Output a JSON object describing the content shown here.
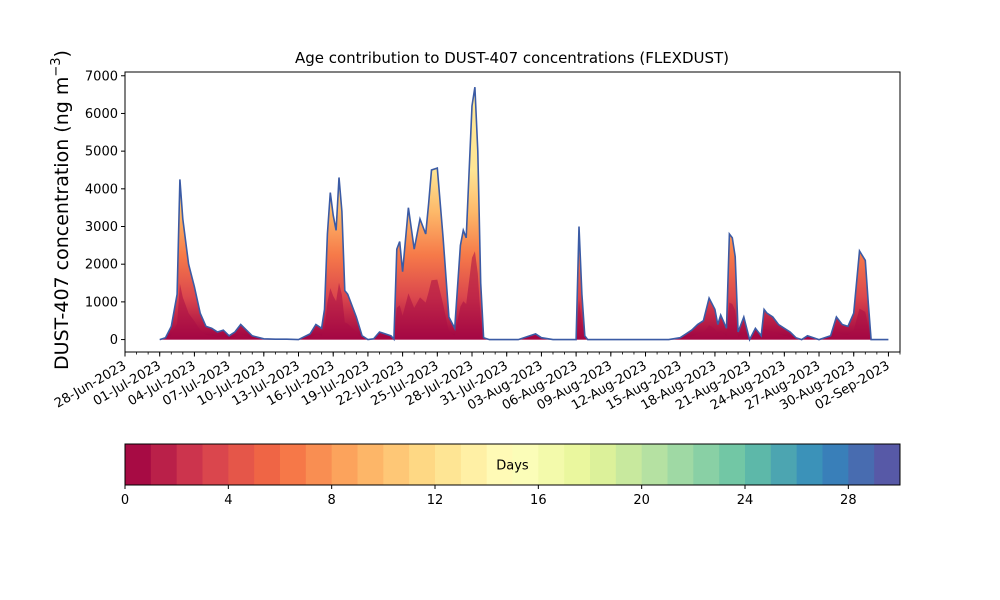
{
  "chart_data": {
    "type": "area",
    "title": "Age contribution to DUST-407 concentrations (FLEXDUST)",
    "ylabel": "DUST-407 concentration (ng m",
    "ylabel_exponent": "−3",
    "ylabel_close": ")",
    "ylim": [
      -330,
      7100
    ],
    "yticks": [
      0,
      1000,
      2000,
      3000,
      4000,
      5000,
      6000,
      7000
    ],
    "xlim": [
      "2023-06-28",
      "2023-09-03"
    ],
    "xticks": [
      "28-Jun-2023",
      "01-Jul-2023",
      "04-Jul-2023",
      "07-Jul-2023",
      "10-Jul-2023",
      "13-Jul-2023",
      "16-Jul-2023",
      "19-Jul-2023",
      "22-Jul-2023",
      "25-Jul-2023",
      "28-Jul-2023",
      "31-Jul-2023",
      "03-Aug-2023",
      "06-Aug-2023",
      "09-Aug-2023",
      "12-Aug-2023",
      "15-Aug-2023",
      "18-Aug-2023",
      "21-Aug-2023",
      "24-Aug-2023",
      "27-Aug-2023",
      "30-Aug-2023",
      "02-Sep-2023"
    ],
    "grid": false,
    "series_note_colorscale": "Spectral",
    "total": {
      "x": [
        "2023-07-01",
        "2023-07-01T12:00",
        "2023-07-02",
        "2023-07-02T12:00",
        "2023-07-02T18:00",
        "2023-07-03",
        "2023-07-03T06:00",
        "2023-07-03T12:00",
        "2023-07-04",
        "2023-07-04T12:00",
        "2023-07-05",
        "2023-07-05T12:00",
        "2023-07-06",
        "2023-07-06T12:00",
        "2023-07-07",
        "2023-07-07T12:00",
        "2023-07-08",
        "2023-07-09",
        "2023-07-10",
        "2023-07-11",
        "2023-07-12",
        "2023-07-13",
        "2023-07-14",
        "2023-07-14T12:00",
        "2023-07-15",
        "2023-07-15T06:00",
        "2023-07-15T12:00",
        "2023-07-15T18:00",
        "2023-07-16",
        "2023-07-16T06:00",
        "2023-07-16T12:00",
        "2023-07-16T18:00",
        "2023-07-17",
        "2023-07-17T06:00",
        "2023-07-17T12:00",
        "2023-07-18",
        "2023-07-18T12:00",
        "2023-07-19",
        "2023-07-19T12:00",
        "2023-07-20",
        "2023-07-21",
        "2023-07-21T06:00",
        "2023-07-21T12:00",
        "2023-07-21T18:00",
        "2023-07-22",
        "2023-07-22T12:00",
        "2023-07-23",
        "2023-07-23T12:00",
        "2023-07-24",
        "2023-07-24T06:00",
        "2023-07-24T12:00",
        "2023-07-25",
        "2023-07-25T12:00",
        "2023-07-26",
        "2023-07-26T12:00",
        "2023-07-27",
        "2023-07-27T06:00",
        "2023-07-27T12:00",
        "2023-07-28",
        "2023-07-28T06:00",
        "2023-07-28T12:00",
        "2023-07-28T18:00",
        "2023-07-29",
        "2023-07-29T12:00",
        "2023-07-30",
        "2023-07-31",
        "2023-08-01",
        "2023-08-02",
        "2023-08-02T12:00",
        "2023-08-03",
        "2023-08-04",
        "2023-08-05",
        "2023-08-06",
        "2023-08-06T06:00",
        "2023-08-06T12:00",
        "2023-08-06T18:00",
        "2023-08-07",
        "2023-08-08",
        "2023-08-10",
        "2023-08-12",
        "2023-08-14",
        "2023-08-15",
        "2023-08-15T12:00",
        "2023-08-16",
        "2023-08-16T12:00",
        "2023-08-17",
        "2023-08-17T12:00",
        "2023-08-18",
        "2023-08-18T06:00",
        "2023-08-18T12:00",
        "2023-08-19",
        "2023-08-19T06:00",
        "2023-08-19T12:00",
        "2023-08-19T18:00",
        "2023-08-20",
        "2023-08-20T12:00",
        "2023-08-21",
        "2023-08-21T12:00",
        "2023-08-22",
        "2023-08-22T06:00",
        "2023-08-22T12:00",
        "2023-08-23",
        "2023-08-23T12:00",
        "2023-08-24",
        "2023-08-24T12:00",
        "2023-08-25",
        "2023-08-25T12:00",
        "2023-08-26",
        "2023-08-27",
        "2023-08-28",
        "2023-08-28T12:00",
        "2023-08-29",
        "2023-08-29T12:00",
        "2023-08-30",
        "2023-08-30T12:00",
        "2023-08-31",
        "2023-08-31T06:00",
        "2023-08-31T12:00",
        "2023-08-31T18:00",
        "2023-09-01",
        "2023-09-02"
      ],
      "y": [
        0,
        50,
        350,
        1200,
        4250,
        3200,
        2600,
        2000,
        1400,
        700,
        350,
        300,
        200,
        250,
        100,
        200,
        400,
        100,
        20,
        10,
        10,
        0,
        150,
        400,
        300,
        800,
        2800,
        3900,
        3300,
        2900,
        4300,
        3400,
        1300,
        1200,
        1000,
        600,
        100,
        0,
        20,
        200,
        100,
        10,
        2400,
        2600,
        1800,
        3500,
        2400,
        3200,
        2800,
        3600,
        4500,
        4550,
        2700,
        600,
        300,
        2500,
        2900,
        2700,
        6200,
        6700,
        5000,
        1500,
        50,
        0,
        0,
        0,
        0,
        100,
        150,
        50,
        0,
        0,
        0,
        3000,
        1200,
        100,
        0,
        0,
        0,
        0,
        0,
        50,
        150,
        250,
        400,
        500,
        1100,
        800,
        400,
        650,
        300,
        2800,
        2700,
        2200,
        200,
        600,
        0,
        300,
        100,
        800,
        700,
        600,
        400,
        300,
        200,
        50,
        0,
        100,
        0,
        100,
        600,
        400,
        350,
        700,
        2350,
        2100,
        1000,
        0,
        0,
        0,
        0
      ]
    },
    "colorbar": {
      "label": "Days",
      "min": 0,
      "max": 30,
      "ticks": [
        0,
        4,
        8,
        12,
        16,
        20,
        24,
        28
      ],
      "bins": 30,
      "colormap": "Spectral"
    },
    "line_color": "#3b5ba5"
  }
}
